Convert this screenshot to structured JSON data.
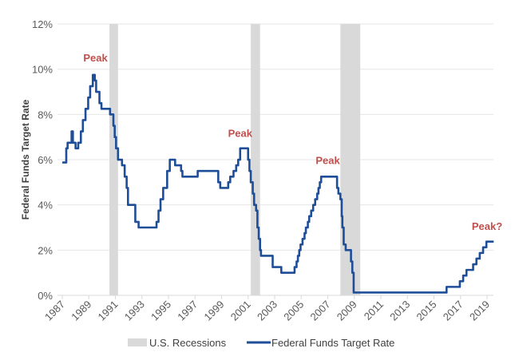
{
  "chart_data": {
    "type": "line",
    "title": "",
    "xlabel": "",
    "ylabel": "Federal Funds Target Rate",
    "xlim": [
      1987,
      2019.5
    ],
    "ylim": [
      0,
      12
    ],
    "yticks": [
      0,
      2,
      4,
      6,
      8,
      10,
      12
    ],
    "ytick_labels": [
      "0%",
      "2%",
      "4%",
      "6%",
      "8%",
      "10%",
      "12%"
    ],
    "xtick_labels": [
      "1987",
      "1989",
      "1991",
      "1993",
      "1995",
      "1997",
      "1999",
      "2001",
      "2003",
      "2005",
      "2007",
      "2009",
      "2011",
      "2013",
      "2015",
      "2017",
      "2019"
    ],
    "grid": "horizontal",
    "legend_position": "bottom",
    "colors": {
      "line": "#1f4e99",
      "recession": "#d9d9d9",
      "annotation": "#c0504d"
    },
    "recessions": {
      "name": "U.S. Recessions",
      "periods": [
        [
          1990.55,
          1991.2
        ],
        [
          2001.2,
          2001.9
        ],
        [
          2007.95,
          2009.45
        ]
      ]
    },
    "series": [
      {
        "name": "Federal Funds Target Rate",
        "step": true,
        "points": [
          [
            1987.0,
            5.875
          ],
          [
            1987.3,
            6.5
          ],
          [
            1987.4,
            6.75
          ],
          [
            1987.7,
            7.25
          ],
          [
            1987.8,
            6.75
          ],
          [
            1988.0,
            6.5
          ],
          [
            1988.2,
            6.75
          ],
          [
            1988.4,
            7.25
          ],
          [
            1988.55,
            7.75
          ],
          [
            1988.75,
            8.25
          ],
          [
            1988.95,
            8.75
          ],
          [
            1989.1,
            9.25
          ],
          [
            1989.3,
            9.75
          ],
          [
            1989.45,
            9.5
          ],
          [
            1989.55,
            9.0
          ],
          [
            1989.8,
            8.5
          ],
          [
            1989.95,
            8.25
          ],
          [
            1990.6,
            8.0
          ],
          [
            1990.85,
            7.5
          ],
          [
            1990.95,
            7.0
          ],
          [
            1991.05,
            6.5
          ],
          [
            1991.2,
            6.0
          ],
          [
            1991.5,
            5.75
          ],
          [
            1991.7,
            5.25
          ],
          [
            1991.85,
            4.75
          ],
          [
            1991.95,
            4.0
          ],
          [
            1992.5,
            3.25
          ],
          [
            1992.75,
            3.0
          ],
          [
            1994.1,
            3.25
          ],
          [
            1994.25,
            3.75
          ],
          [
            1994.4,
            4.25
          ],
          [
            1994.6,
            4.75
          ],
          [
            1994.9,
            5.5
          ],
          [
            1995.1,
            6.0
          ],
          [
            1995.5,
            5.75
          ],
          [
            1995.95,
            5.5
          ],
          [
            1996.05,
            5.25
          ],
          [
            1997.2,
            5.5
          ],
          [
            1998.75,
            5.0
          ],
          [
            1998.9,
            4.75
          ],
          [
            1999.5,
            5.0
          ],
          [
            1999.65,
            5.25
          ],
          [
            1999.9,
            5.5
          ],
          [
            2000.1,
            5.75
          ],
          [
            2000.25,
            6.0
          ],
          [
            2000.4,
            6.5
          ],
          [
            2001.0,
            6.0
          ],
          [
            2001.1,
            5.5
          ],
          [
            2001.2,
            5.0
          ],
          [
            2001.35,
            4.5
          ],
          [
            2001.45,
            4.0
          ],
          [
            2001.6,
            3.75
          ],
          [
            2001.7,
            3.0
          ],
          [
            2001.8,
            2.5
          ],
          [
            2001.9,
            2.0
          ],
          [
            2001.97,
            1.75
          ],
          [
            2002.85,
            1.25
          ],
          [
            2003.5,
            1.0
          ],
          [
            2004.5,
            1.25
          ],
          [
            2004.65,
            1.5
          ],
          [
            2004.75,
            1.75
          ],
          [
            2004.85,
            2.0
          ],
          [
            2004.95,
            2.25
          ],
          [
            2005.1,
            2.5
          ],
          [
            2005.25,
            2.75
          ],
          [
            2005.35,
            3.0
          ],
          [
            2005.5,
            3.25
          ],
          [
            2005.6,
            3.5
          ],
          [
            2005.75,
            3.75
          ],
          [
            2005.9,
            4.0
          ],
          [
            2006.05,
            4.25
          ],
          [
            2006.2,
            4.5
          ],
          [
            2006.3,
            4.75
          ],
          [
            2006.4,
            5.0
          ],
          [
            2006.5,
            5.25
          ],
          [
            2007.7,
            4.75
          ],
          [
            2007.8,
            4.5
          ],
          [
            2007.95,
            4.25
          ],
          [
            2008.05,
            3.5
          ],
          [
            2008.1,
            3.0
          ],
          [
            2008.2,
            2.25
          ],
          [
            2008.35,
            2.0
          ],
          [
            2008.75,
            1.5
          ],
          [
            2008.85,
            1.0
          ],
          [
            2008.95,
            0.125
          ],
          [
            2015.95,
            0.375
          ],
          [
            2016.95,
            0.625
          ],
          [
            2017.2,
            0.875
          ],
          [
            2017.45,
            1.125
          ],
          [
            2017.95,
            1.375
          ],
          [
            2018.2,
            1.625
          ],
          [
            2018.45,
            1.875
          ],
          [
            2018.7,
            2.125
          ],
          [
            2018.95,
            2.375
          ],
          [
            2019.5,
            2.375
          ]
        ]
      }
    ],
    "annotations": [
      {
        "text": "Peak",
        "x": 1989.5,
        "y": 10.35
      },
      {
        "text": "Peak",
        "x": 2000.4,
        "y": 7.0
      },
      {
        "text": "Peak",
        "x": 2007.0,
        "y": 5.8
      },
      {
        "text": "Peak?",
        "x": 2019.0,
        "y": 2.9
      }
    ]
  }
}
